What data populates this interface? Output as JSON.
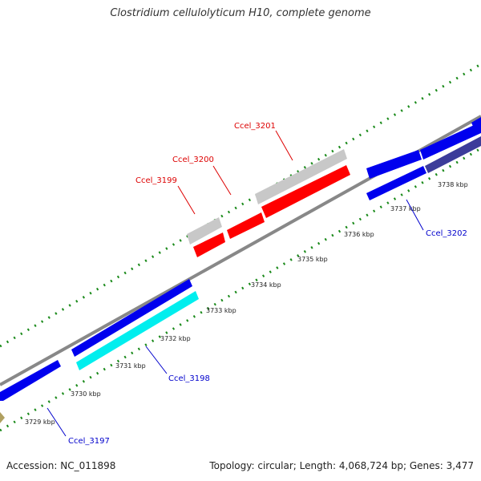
{
  "title": "Clostridium cellulolyticum H10, complete genome",
  "footer": {
    "accession": "Accession: NC_011898",
    "summary": "Topology: circular; Length: 4,068,724 bp; Genes: 3,477"
  },
  "ticks": [
    "3729 kbp",
    "3730 kbp",
    "3731 kbp",
    "3732 kbp",
    "3733 kbp",
    "3734 kbp",
    "3735 kbp",
    "3736 kbp",
    "3737 kbp",
    "3738 kbp"
  ],
  "genes": {
    "ccel_3197": "Ccel_3197",
    "ccel_3198": "Ccel_3198",
    "ccel_3199": "Ccel_3199",
    "ccel_3200": "Ccel_3200",
    "ccel_3201": "Ccel_3201",
    "ccel_3202": "Ccel_3202"
  },
  "colors": {
    "forward_gene": "#0000ee",
    "reverse_gene": "#ff0000",
    "cyan_gene": "#00eeee",
    "gray_gene": "#c8c8c8",
    "dark_gene": "#3c3c9a",
    "olive_gene": "#b0a060",
    "backbone": "#888888",
    "dot_track": "#1a8a1a",
    "blue_label": "#0000cc",
    "red_label": "#dd0000"
  }
}
